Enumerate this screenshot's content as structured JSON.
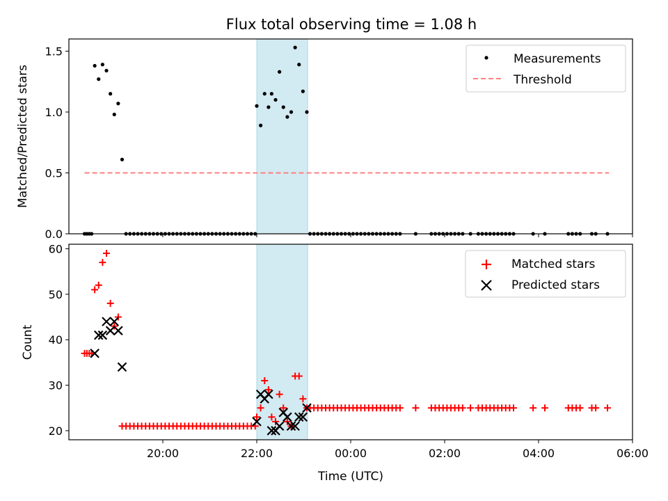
{
  "chart_data": [
    {
      "type": "scatter",
      "title": "Flux total observing time = 1.08 h",
      "ylabel": "Matched/Predicted stars",
      "xlim": [
        "18:00",
        "06:00"
      ],
      "ylim": [
        0,
        1.6
      ],
      "yticks": [
        "0.0",
        "0.5",
        "1.0",
        "1.5"
      ],
      "grid": false,
      "legend_position": "upper right",
      "shaded_interval": [
        "22:00",
        "23:05"
      ],
      "shade_color": "#add8e6",
      "series": [
        {
          "name": "Measurements",
          "kind": "points",
          "color": "#000000",
          "points": [
            [
              "18:20",
              0
            ],
            [
              "18:23",
              0
            ],
            [
              "18:26",
              0
            ],
            [
              "18:29",
              0
            ],
            [
              "18:33",
              1.38
            ],
            [
              "18:38",
              1.27
            ],
            [
              "18:43",
              1.39
            ],
            [
              "18:48",
              1.34
            ],
            [
              "18:53",
              1.15
            ],
            [
              "18:58",
              0.98
            ],
            [
              "19:03",
              1.07
            ],
            [
              "19:08",
              0.61
            ],
            [
              "19:13",
              0
            ],
            [
              "19:18",
              0
            ],
            [
              "19:23",
              0
            ],
            [
              "19:28",
              0
            ],
            [
              "19:33",
              0
            ],
            [
              "19:38",
              0
            ],
            [
              "19:43",
              0
            ],
            [
              "19:48",
              0
            ],
            [
              "19:53",
              0
            ],
            [
              "19:58",
              0
            ],
            [
              "20:03",
              0
            ],
            [
              "20:08",
              0
            ],
            [
              "20:13",
              0
            ],
            [
              "20:18",
              0
            ],
            [
              "20:23",
              0
            ],
            [
              "20:28",
              0
            ],
            [
              "20:33",
              0
            ],
            [
              "20:38",
              0
            ],
            [
              "20:43",
              0
            ],
            [
              "20:48",
              0
            ],
            [
              "20:53",
              0
            ],
            [
              "20:58",
              0
            ],
            [
              "21:03",
              0
            ],
            [
              "21:08",
              0
            ],
            [
              "21:13",
              0
            ],
            [
              "21:18",
              0
            ],
            [
              "21:23",
              0
            ],
            [
              "21:28",
              0
            ],
            [
              "21:33",
              0
            ],
            [
              "21:38",
              0
            ],
            [
              "21:43",
              0
            ],
            [
              "21:48",
              0
            ],
            [
              "21:53",
              0
            ],
            [
              "21:58",
              0
            ],
            [
              "22:00",
              1.05
            ],
            [
              "22:05",
              0.89
            ],
            [
              "22:10",
              1.15
            ],
            [
              "22:15",
              1.04
            ],
            [
              "22:19",
              1.15
            ],
            [
              "22:24",
              1.1
            ],
            [
              "22:29",
              1.33
            ],
            [
              "22:34",
              1.04
            ],
            [
              "22:39",
              0.96
            ],
            [
              "22:44",
              1.0
            ],
            [
              "22:49",
              1.53
            ],
            [
              "22:54",
              1.39
            ],
            [
              "22:59",
              1.17
            ],
            [
              "23:04",
              1.0
            ],
            [
              "23:08",
              0
            ],
            [
              "23:13",
              0
            ],
            [
              "23:18",
              0
            ],
            [
              "23:23",
              0
            ],
            [
              "23:28",
              0
            ],
            [
              "23:33",
              0
            ],
            [
              "23:38",
              0
            ],
            [
              "23:43",
              0
            ],
            [
              "23:48",
              0
            ],
            [
              "23:53",
              0
            ],
            [
              "23:58",
              0
            ],
            [
              "00:03",
              0
            ],
            [
              "00:08",
              0
            ],
            [
              "00:13",
              0
            ],
            [
              "00:18",
              0
            ],
            [
              "00:23",
              0
            ],
            [
              "00:28",
              0
            ],
            [
              "00:33",
              0
            ],
            [
              "00:38",
              0
            ],
            [
              "00:43",
              0
            ],
            [
              "00:48",
              0
            ],
            [
              "00:53",
              0
            ],
            [
              "00:58",
              0
            ],
            [
              "01:03",
              0
            ],
            [
              "01:23",
              0
            ],
            [
              "01:43",
              0
            ],
            [
              "01:48",
              0
            ],
            [
              "01:53",
              0
            ],
            [
              "01:58",
              0
            ],
            [
              "02:03",
              0
            ],
            [
              "02:08",
              0
            ],
            [
              "02:13",
              0
            ],
            [
              "02:18",
              0
            ],
            [
              "02:23",
              0
            ],
            [
              "02:33",
              0
            ],
            [
              "02:43",
              0
            ],
            [
              "02:48",
              0
            ],
            [
              "02:53",
              0
            ],
            [
              "02:58",
              0
            ],
            [
              "03:03",
              0
            ],
            [
              "03:08",
              0
            ],
            [
              "03:13",
              0
            ],
            [
              "03:18",
              0
            ],
            [
              "03:23",
              0
            ],
            [
              "03:28",
              0
            ],
            [
              "03:53",
              0
            ],
            [
              "04:08",
              0
            ],
            [
              "04:38",
              0
            ],
            [
              "04:43",
              0
            ],
            [
              "04:48",
              0
            ],
            [
              "04:53",
              0
            ],
            [
              "05:08",
              0
            ],
            [
              "05:13",
              0
            ],
            [
              "05:28",
              0
            ]
          ]
        },
        {
          "name": "Threshold",
          "kind": "dashed-line",
          "color": "#ff7f7f",
          "points": [
            [
              "18:20",
              0.5
            ],
            [
              "05:30",
              0.5
            ]
          ]
        }
      ]
    },
    {
      "type": "scatter",
      "xlabel": "Time (UTC)",
      "ylabel": "Count",
      "xlim": [
        "18:00",
        "06:00"
      ],
      "ylim": [
        18,
        61
      ],
      "yticks": [
        "20",
        "30",
        "40",
        "50",
        "60"
      ],
      "xticks": [
        "20:00",
        "22:00",
        "00:00",
        "02:00",
        "04:00",
        "06:00"
      ],
      "grid": false,
      "legend_position": "upper right",
      "shaded_interval": [
        "22:00",
        "23:05"
      ],
      "shade_color": "#add8e6",
      "series": [
        {
          "name": "Matched stars",
          "marker": "plus",
          "color": "#ff0000",
          "points": [
            [
              "18:20",
              37
            ],
            [
              "18:23",
              37
            ],
            [
              "18:26",
              37
            ],
            [
              "18:29",
              37
            ],
            [
              "18:33",
              51
            ],
            [
              "18:38",
              52
            ],
            [
              "18:43",
              57
            ],
            [
              "18:48",
              59
            ],
            [
              "18:53",
              48
            ],
            [
              "18:58",
              43
            ],
            [
              "19:03",
              45
            ],
            [
              "19:08",
              21
            ],
            [
              "19:13",
              21
            ],
            [
              "19:18",
              21
            ],
            [
              "19:23",
              21
            ],
            [
              "19:28",
              21
            ],
            [
              "19:33",
              21
            ],
            [
              "19:38",
              21
            ],
            [
              "19:43",
              21
            ],
            [
              "19:48",
              21
            ],
            [
              "19:53",
              21
            ],
            [
              "19:58",
              21
            ],
            [
              "20:03",
              21
            ],
            [
              "20:08",
              21
            ],
            [
              "20:13",
              21
            ],
            [
              "20:18",
              21
            ],
            [
              "20:23",
              21
            ],
            [
              "20:28",
              21
            ],
            [
              "20:33",
              21
            ],
            [
              "20:38",
              21
            ],
            [
              "20:43",
              21
            ],
            [
              "20:48",
              21
            ],
            [
              "20:53",
              21
            ],
            [
              "20:58",
              21
            ],
            [
              "21:03",
              21
            ],
            [
              "21:08",
              21
            ],
            [
              "21:13",
              21
            ],
            [
              "21:18",
              21
            ],
            [
              "21:23",
              21
            ],
            [
              "21:28",
              21
            ],
            [
              "21:33",
              21
            ],
            [
              "21:38",
              21
            ],
            [
              "21:43",
              21
            ],
            [
              "21:48",
              21
            ],
            [
              "21:53",
              21
            ],
            [
              "21:58",
              21
            ],
            [
              "22:00",
              23
            ],
            [
              "22:05",
              25
            ],
            [
              "22:10",
              31
            ],
            [
              "22:15",
              29
            ],
            [
              "22:19",
              23
            ],
            [
              "22:24",
              22
            ],
            [
              "22:29",
              28
            ],
            [
              "22:34",
              25
            ],
            [
              "22:39",
              22
            ],
            [
              "22:44",
              21
            ],
            [
              "22:49",
              32
            ],
            [
              "22:54",
              32
            ],
            [
              "22:59",
              27
            ],
            [
              "23:04",
              25
            ],
            [
              "23:08",
              25
            ],
            [
              "23:13",
              25
            ],
            [
              "23:18",
              25
            ],
            [
              "23:23",
              25
            ],
            [
              "23:28",
              25
            ],
            [
              "23:33",
              25
            ],
            [
              "23:38",
              25
            ],
            [
              "23:43",
              25
            ],
            [
              "23:48",
              25
            ],
            [
              "23:53",
              25
            ],
            [
              "23:58",
              25
            ],
            [
              "00:03",
              25
            ],
            [
              "00:08",
              25
            ],
            [
              "00:13",
              25
            ],
            [
              "00:18",
              25
            ],
            [
              "00:23",
              25
            ],
            [
              "00:28",
              25
            ],
            [
              "00:33",
              25
            ],
            [
              "00:38",
              25
            ],
            [
              "00:43",
              25
            ],
            [
              "00:48",
              25
            ],
            [
              "00:53",
              25
            ],
            [
              "00:58",
              25
            ],
            [
              "01:03",
              25
            ],
            [
              "01:23",
              25
            ],
            [
              "01:43",
              25
            ],
            [
              "01:48",
              25
            ],
            [
              "01:53",
              25
            ],
            [
              "01:58",
              25
            ],
            [
              "02:03",
              25
            ],
            [
              "02:08",
              25
            ],
            [
              "02:13",
              25
            ],
            [
              "02:18",
              25
            ],
            [
              "02:23",
              25
            ],
            [
              "02:33",
              25
            ],
            [
              "02:43",
              25
            ],
            [
              "02:48",
              25
            ],
            [
              "02:53",
              25
            ],
            [
              "02:58",
              25
            ],
            [
              "03:03",
              25
            ],
            [
              "03:08",
              25
            ],
            [
              "03:13",
              25
            ],
            [
              "03:18",
              25
            ],
            [
              "03:23",
              25
            ],
            [
              "03:28",
              25
            ],
            [
              "03:53",
              25
            ],
            [
              "04:08",
              25
            ],
            [
              "04:38",
              25
            ],
            [
              "04:43",
              25
            ],
            [
              "04:48",
              25
            ],
            [
              "04:53",
              25
            ],
            [
              "05:08",
              25
            ],
            [
              "05:13",
              25
            ],
            [
              "05:28",
              25
            ]
          ]
        },
        {
          "name": "Predicted stars",
          "marker": "x",
          "color": "#000000",
          "points": [
            [
              "18:33",
              37
            ],
            [
              "18:38",
              41
            ],
            [
              "18:43",
              41
            ],
            [
              "18:48",
              44
            ],
            [
              "18:53",
              42
            ],
            [
              "18:58",
              44
            ],
            [
              "19:03",
              42
            ],
            [
              "19:08",
              34
            ],
            [
              "22:00",
              22
            ],
            [
              "22:05",
              28
            ],
            [
              "22:10",
              27
            ],
            [
              "22:15",
              28
            ],
            [
              "22:19",
              20
            ],
            [
              "22:24",
              20
            ],
            [
              "22:29",
              21
            ],
            [
              "22:34",
              24
            ],
            [
              "22:39",
              23
            ],
            [
              "22:44",
              21
            ],
            [
              "22:49",
              21
            ],
            [
              "22:54",
              23
            ],
            [
              "22:59",
              23
            ],
            [
              "23:04",
              25
            ]
          ]
        }
      ]
    }
  ]
}
